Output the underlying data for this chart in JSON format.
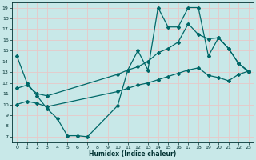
{
  "xlabel": "Humidex (Indice chaleur)",
  "bg_color": "#c8e8e8",
  "line_color": "#006868",
  "grid_color": "#b0d0d0",
  "xlim": [
    -0.5,
    23.5
  ],
  "ylim": [
    6.5,
    19.5
  ],
  "xticks": [
    0,
    1,
    2,
    3,
    4,
    5,
    6,
    7,
    8,
    9,
    10,
    11,
    12,
    13,
    14,
    15,
    16,
    17,
    18,
    19,
    20,
    21,
    22,
    23
  ],
  "yticks": [
    7,
    8,
    9,
    10,
    11,
    12,
    13,
    14,
    15,
    16,
    17,
    18,
    19
  ],
  "line1_x": [
    0,
    1,
    2,
    3,
    4,
    5,
    6,
    7,
    10,
    11,
    12,
    13,
    14,
    15,
    16,
    17,
    18,
    19,
    20,
    21,
    22,
    23
  ],
  "line1_y": [
    14.5,
    12.0,
    10.8,
    9.6,
    8.7,
    7.1,
    7.1,
    7.0,
    9.9,
    13.2,
    15.0,
    13.2,
    19.0,
    17.2,
    17.2,
    19.0,
    19.0,
    14.5,
    16.2,
    15.2,
    13.8,
    13.0
  ],
  "line2_x": [
    0,
    1,
    2,
    3,
    10,
    11,
    12,
    13,
    14,
    15,
    16,
    17,
    18,
    19,
    20,
    21,
    22,
    23
  ],
  "line2_y": [
    11.5,
    11.8,
    11.0,
    10.8,
    12.8,
    13.2,
    13.5,
    14.0,
    14.8,
    15.2,
    15.8,
    17.5,
    16.5,
    16.1,
    16.2,
    15.2,
    13.8,
    13.1
  ],
  "line3_x": [
    0,
    1,
    2,
    3,
    10,
    11,
    12,
    13,
    14,
    15,
    16,
    17,
    18,
    19,
    20,
    21,
    22,
    23
  ],
  "line3_y": [
    10.0,
    10.3,
    10.1,
    9.8,
    11.2,
    11.5,
    11.8,
    12.0,
    12.3,
    12.6,
    12.9,
    13.2,
    13.4,
    12.7,
    12.5,
    12.2,
    12.8,
    13.1
  ]
}
